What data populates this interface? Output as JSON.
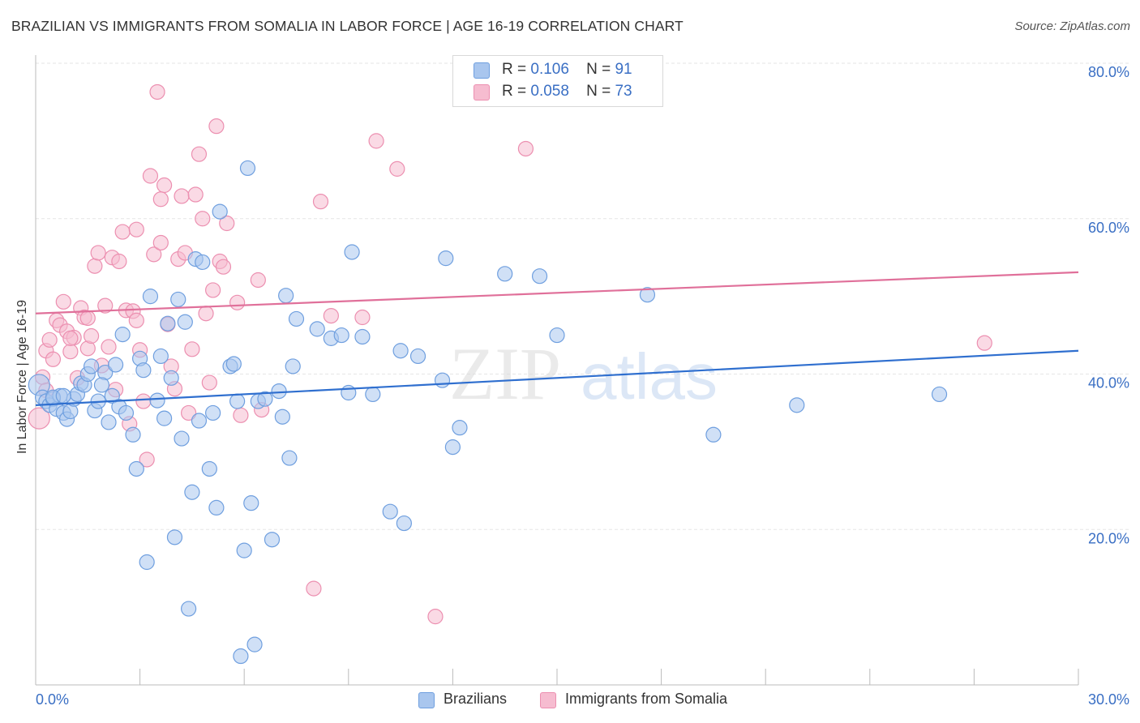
{
  "title": "BRAZILIAN VS IMMIGRANTS FROM SOMALIA IN LABOR FORCE | AGE 16-19 CORRELATION CHART",
  "source": "Source: ZipAtlas.com",
  "colors": {
    "blue_fill": "#a9c6ee",
    "blue_stroke": "#6f9fdf",
    "blue_line": "#2f6fcf",
    "pink_fill": "#f6bcd0",
    "pink_stroke": "#ec8fb0",
    "pink_line": "#e0709a",
    "axis_tick_text": "#3a6fc4",
    "grid": "#e6e6e6"
  },
  "legend_top": [
    {
      "r_label": "R =",
      "r_value": "0.106",
      "n_label": "N =",
      "n_value": "91"
    },
    {
      "r_label": "R =",
      "r_value": "0.058",
      "n_label": "N =",
      "n_value": "73"
    }
  ],
  "chart_data": {
    "type": "scatter",
    "title": "BRAZILIAN VS IMMIGRANTS FROM SOMALIA IN LABOR FORCE | AGE 16-19 CORRELATION CHART",
    "xlabel": "",
    "ylabel": "In Labor Force | Age 16-19",
    "xlim": [
      0,
      30
    ],
    "ylim": [
      0,
      80
    ],
    "x_tick_labels": [
      "0.0%",
      "30.0%"
    ],
    "y_ticks": [
      20,
      40,
      60,
      80
    ],
    "y_tick_labels": [
      "20.0%",
      "40.0%",
      "60.0%",
      "80.0%"
    ],
    "grid": true,
    "legend_position": "bottom",
    "watermark": "ZIPatlas",
    "series": [
      {
        "name": "Brazilians",
        "color": "#6f9fdf",
        "r": 0.106,
        "n": 91,
        "trend": {
          "x": [
            0,
            30
          ],
          "y": [
            36.0,
            43.0
          ]
        },
        "points": [
          [
            0.1,
            38.6
          ],
          [
            0.2,
            37.0
          ],
          [
            0.3,
            36.5
          ],
          [
            0.4,
            36.0
          ],
          [
            0.5,
            36.8
          ],
          [
            0.6,
            35.5
          ],
          [
            0.7,
            37.2
          ],
          [
            0.8,
            35.0
          ],
          [
            0.9,
            34.2
          ],
          [
            1.0,
            35.2
          ],
          [
            1.1,
            36.8
          ],
          [
            1.2,
            37.4
          ],
          [
            1.3,
            38.8
          ],
          [
            1.4,
            38.6
          ],
          [
            1.5,
            40.0
          ],
          [
            1.6,
            41.0
          ],
          [
            1.7,
            35.3
          ],
          [
            1.8,
            36.5
          ],
          [
            2.0,
            40.2
          ],
          [
            2.1,
            33.8
          ],
          [
            2.2,
            37.2
          ],
          [
            2.3,
            41.2
          ],
          [
            2.4,
            35.8
          ],
          [
            2.6,
            35.0
          ],
          [
            2.8,
            32.2
          ],
          [
            2.9,
            27.8
          ],
          [
            3.0,
            42.0
          ],
          [
            3.1,
            40.5
          ],
          [
            3.2,
            15.8
          ],
          [
            3.3,
            50.0
          ],
          [
            3.5,
            36.6
          ],
          [
            3.6,
            42.3
          ],
          [
            3.7,
            34.3
          ],
          [
            3.8,
            46.5
          ],
          [
            3.9,
            39.5
          ],
          [
            4.0,
            19.0
          ],
          [
            4.1,
            49.6
          ],
          [
            4.2,
            31.7
          ],
          [
            4.3,
            46.7
          ],
          [
            4.4,
            9.8
          ],
          [
            4.5,
            24.8
          ],
          [
            4.6,
            54.8
          ],
          [
            4.7,
            34.0
          ],
          [
            4.8,
            54.4
          ],
          [
            5.0,
            27.8
          ],
          [
            5.1,
            35.0
          ],
          [
            5.2,
            22.8
          ],
          [
            5.3,
            60.9
          ],
          [
            5.6,
            41.0
          ],
          [
            5.7,
            41.3
          ],
          [
            5.8,
            36.5
          ],
          [
            5.9,
            3.7
          ],
          [
            6.0,
            17.3
          ],
          [
            6.1,
            66.5
          ],
          [
            6.2,
            23.4
          ],
          [
            6.3,
            5.2
          ],
          [
            6.4,
            36.5
          ],
          [
            6.6,
            36.8
          ],
          [
            6.8,
            18.7
          ],
          [
            7.0,
            37.8
          ],
          [
            7.1,
            34.5
          ],
          [
            7.2,
            50.1
          ],
          [
            7.3,
            29.2
          ],
          [
            7.4,
            41.0
          ],
          [
            7.5,
            47.1
          ],
          [
            8.1,
            45.8
          ],
          [
            8.5,
            44.6
          ],
          [
            8.8,
            45.0
          ],
          [
            9.0,
            37.6
          ],
          [
            9.1,
            55.7
          ],
          [
            9.4,
            44.8
          ],
          [
            9.7,
            37.4
          ],
          [
            10.2,
            22.3
          ],
          [
            10.5,
            43.0
          ],
          [
            10.6,
            20.8
          ],
          [
            11.0,
            42.3
          ],
          [
            11.7,
            39.2
          ],
          [
            11.8,
            54.9
          ],
          [
            12.0,
            30.6
          ],
          [
            12.2,
            33.1
          ],
          [
            13.5,
            52.9
          ],
          [
            14.5,
            52.6
          ],
          [
            15.0,
            45.0
          ],
          [
            17.6,
            50.2
          ],
          [
            19.5,
            32.2
          ],
          [
            21.9,
            36.0
          ],
          [
            26.0,
            37.4
          ],
          [
            1.9,
            38.6
          ],
          [
            2.5,
            45.1
          ],
          [
            0.5,
            37.0
          ],
          [
            0.8,
            37.2
          ]
        ]
      },
      {
        "name": "Immigrants from Somalia",
        "color": "#ec8fb0",
        "r": 0.058,
        "n": 73,
        "trend": {
          "x": [
            0,
            30
          ],
          "y": [
            47.8,
            53.1
          ]
        },
        "points": [
          [
            0.1,
            34.3
          ],
          [
            0.2,
            39.6
          ],
          [
            0.3,
            43.0
          ],
          [
            0.4,
            44.4
          ],
          [
            0.5,
            41.9
          ],
          [
            0.6,
            46.9
          ],
          [
            0.7,
            46.3
          ],
          [
            0.8,
            49.3
          ],
          [
            0.9,
            45.5
          ],
          [
            1.0,
            42.9
          ],
          [
            1.1,
            44.7
          ],
          [
            1.2,
            39.5
          ],
          [
            1.3,
            48.5
          ],
          [
            1.4,
            47.3
          ],
          [
            1.5,
            43.3
          ],
          [
            1.6,
            44.9
          ],
          [
            1.7,
            53.9
          ],
          [
            1.8,
            55.6
          ],
          [
            1.9,
            41.1
          ],
          [
            2.0,
            48.8
          ],
          [
            2.1,
            43.5
          ],
          [
            2.2,
            55.0
          ],
          [
            2.3,
            38.0
          ],
          [
            2.4,
            54.5
          ],
          [
            2.5,
            58.3
          ],
          [
            2.6,
            48.2
          ],
          [
            2.7,
            33.6
          ],
          [
            2.8,
            48.1
          ],
          [
            2.9,
            58.6
          ],
          [
            3.0,
            43.1
          ],
          [
            3.1,
            36.5
          ],
          [
            3.2,
            29.0
          ],
          [
            3.3,
            65.5
          ],
          [
            3.4,
            55.4
          ],
          [
            3.5,
            76.3
          ],
          [
            3.6,
            56.9
          ],
          [
            3.7,
            64.3
          ],
          [
            3.8,
            46.4
          ],
          [
            3.9,
            41.0
          ],
          [
            4.0,
            38.1
          ],
          [
            4.1,
            54.8
          ],
          [
            4.2,
            62.9
          ],
          [
            4.3,
            55.6
          ],
          [
            4.4,
            35.0
          ],
          [
            4.5,
            43.2
          ],
          [
            4.6,
            63.1
          ],
          [
            4.7,
            68.3
          ],
          [
            4.8,
            60.0
          ],
          [
            4.9,
            47.8
          ],
          [
            5.0,
            38.9
          ],
          [
            5.1,
            50.8
          ],
          [
            5.2,
            71.9
          ],
          [
            5.3,
            54.5
          ],
          [
            5.4,
            53.8
          ],
          [
            5.5,
            59.4
          ],
          [
            5.8,
            49.2
          ],
          [
            5.9,
            34.7
          ],
          [
            6.4,
            52.1
          ],
          [
            6.5,
            35.4
          ],
          [
            8.0,
            12.4
          ],
          [
            8.2,
            62.2
          ],
          [
            8.5,
            47.5
          ],
          [
            9.4,
            47.3
          ],
          [
            9.8,
            70.0
          ],
          [
            10.4,
            66.4
          ],
          [
            11.5,
            8.8
          ],
          [
            14.1,
            69.0
          ],
          [
            27.3,
            44.0
          ],
          [
            1.0,
            44.6
          ],
          [
            1.5,
            47.2
          ],
          [
            0.3,
            37.9
          ],
          [
            2.9,
            46.9
          ],
          [
            3.6,
            62.5
          ]
        ]
      }
    ]
  },
  "legend_bottom": [
    "Brazilians",
    "Immigrants from Somalia"
  ]
}
